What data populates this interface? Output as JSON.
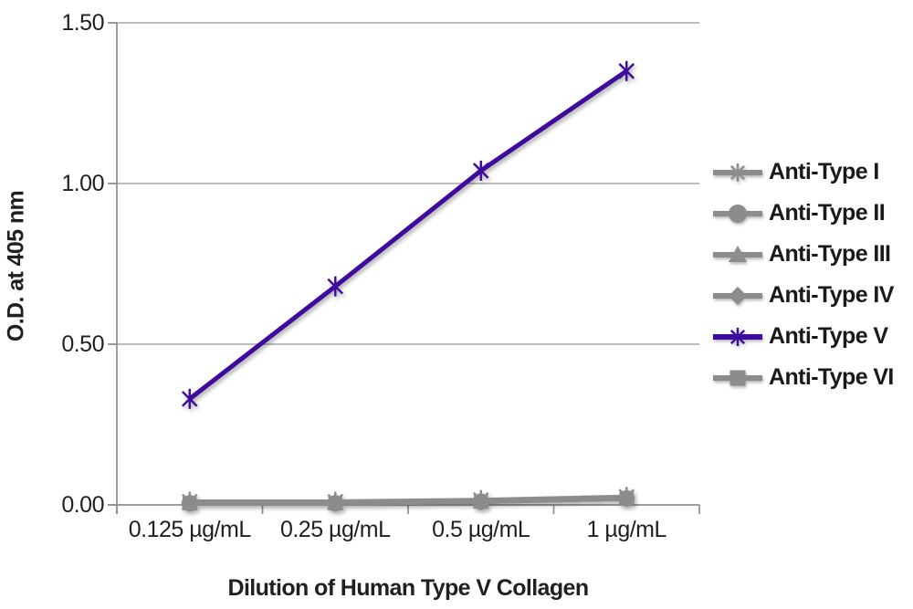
{
  "chart_data": {
    "type": "line",
    "categories": [
      "0.125 µg/mL",
      "0.25 µg/mL",
      "0.5 µg/mL",
      "1 µg/mL"
    ],
    "series": [
      {
        "name": "Anti-Type I",
        "color": "#8C8C8C",
        "marker": "asterisk",
        "values": [
          0.01,
          0.01,
          0.015,
          0.025
        ]
      },
      {
        "name": "Anti-Type II",
        "color": "#8C8C8C",
        "marker": "circle",
        "values": [
          0.005,
          0.005,
          0.01,
          0.02
        ]
      },
      {
        "name": "Anti-Type III",
        "color": "#8C8C8C",
        "marker": "triangle",
        "values": [
          0.005,
          0.005,
          0.01,
          0.02
        ]
      },
      {
        "name": "Anti-Type IV",
        "color": "#8C8C8C",
        "marker": "diamond",
        "values": [
          0.005,
          0.005,
          0.01,
          0.02
        ]
      },
      {
        "name": "Anti-Type V",
        "color": "#3D0C9C",
        "marker": "asterisk",
        "values": [
          0.33,
          0.68,
          1.04,
          1.35
        ]
      },
      {
        "name": "Anti-Type VI",
        "color": "#8C8C8C",
        "marker": "square",
        "values": [
          0.005,
          0.005,
          0.01,
          0.02
        ]
      }
    ],
    "title": "",
    "xlabel": "Dilution of Human Type V Collagen",
    "ylabel": "O.D. at 405 nm",
    "ylim": [
      0,
      1.5
    ],
    "yticks": [
      0,
      0.5,
      1.0,
      1.5
    ],
    "ytick_labels": [
      "0.00",
      "0.50",
      "1.00",
      "1.50"
    ],
    "grid": true,
    "legend_position": "right"
  },
  "colors": {
    "background": "#FFFFFF",
    "grid": "#A6A6A6",
    "axis": "#8F8F8F",
    "text": "#231F20",
    "series_gray": "#8C8C8C",
    "series_purple": "#3D0C9C"
  }
}
